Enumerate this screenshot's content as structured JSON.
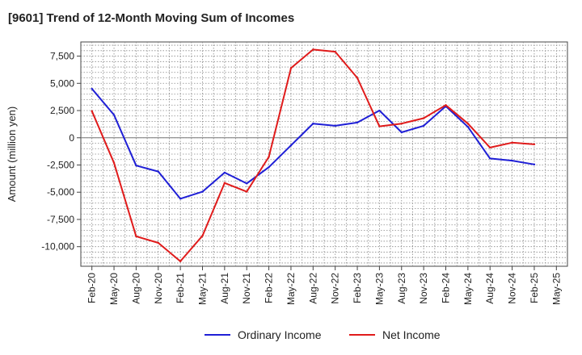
{
  "chart_data": {
    "type": "line",
    "title": "[9601]  Trend of 12-Month Moving Sum of Incomes",
    "xlabel": "",
    "ylabel": "Amount (million yen)",
    "ylim": [
      -11800,
      8800
    ],
    "yticks": [
      7500,
      5000,
      2500,
      0,
      -2500,
      -5000,
      -7500,
      -10000
    ],
    "ytick_labels": [
      "7,500",
      "5,000",
      "2,500",
      "0",
      "-2,500",
      "-5,000",
      "-7,500",
      "-10,000"
    ],
    "x_tick_labels": [
      "Feb-20",
      "May-20",
      "Aug-20",
      "Nov-20",
      "Feb-21",
      "May-21",
      "Aug-21",
      "Nov-21",
      "Feb-22",
      "May-22",
      "Aug-22",
      "Nov-22",
      "Feb-23",
      "May-23",
      "Aug-23",
      "Nov-23",
      "Feb-24",
      "May-24",
      "Aug-24",
      "Nov-24",
      "Feb-25",
      "May-25"
    ],
    "categories": [
      "Feb-20",
      "May-20",
      "Aug-20",
      "Nov-20",
      "Feb-21",
      "May-21",
      "Aug-21",
      "Nov-21",
      "Feb-22",
      "May-22",
      "Aug-22",
      "Nov-22",
      "Feb-23",
      "May-23",
      "Aug-23",
      "Nov-23",
      "Feb-24",
      "May-24",
      "Aug-24",
      "Nov-24",
      "Feb-25"
    ],
    "grid": true,
    "legend_position": "bottom",
    "series": [
      {
        "name": "Ordinary Income",
        "color": "#1f1fd6",
        "values": [
          4500,
          2100,
          -2550,
          -3100,
          -5600,
          -4950,
          -3200,
          -4200,
          -2700,
          -700,
          1300,
          1100,
          1400,
          2500,
          500,
          1100,
          2900,
          1000,
          -1900,
          -2100,
          -2450
        ]
      },
      {
        "name": "Net Income",
        "color": "#e01b1b",
        "values": [
          2450,
          -2300,
          -9050,
          -9650,
          -11350,
          -9000,
          -4150,
          -4950,
          -1750,
          6400,
          8100,
          7900,
          5500,
          1050,
          1300,
          1800,
          3000,
          1300,
          -900,
          -450,
          -600
        ]
      }
    ]
  }
}
